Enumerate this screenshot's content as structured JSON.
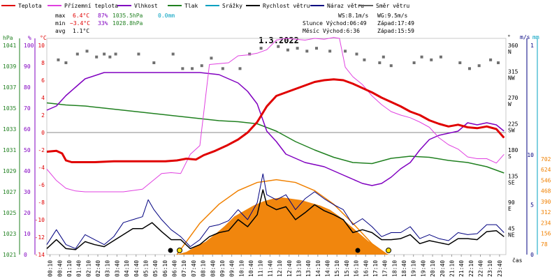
{
  "chart_data": {
    "type": "line",
    "title": "1.3.2022",
    "legend": [
      {
        "name": "Teplota",
        "color": "#e00000"
      },
      {
        "name": "Přízemní teplota",
        "color": "#e040e0"
      },
      {
        "name": "Vlhkost",
        "color": "#8000c0"
      },
      {
        "name": "Tlak",
        "color": "#208020"
      },
      {
        "name": "Srážky",
        "color": "#00a0c0"
      },
      {
        "name": "Rychlost větru",
        "color": "#000000"
      },
      {
        "name": "Náraz větru",
        "color": "#000080"
      },
      {
        "name": "Směr větru",
        "color": "#606060"
      }
    ],
    "stats": {
      "max_label": "max",
      "max_temp": "6.4°C",
      "max_hum": "87%",
      "max_press": "1035.5hPa",
      "max_rain": "0.0mm",
      "min_label": "min",
      "min_temp": "−3.4°C",
      "min_hum": "33%",
      "min_press": "1028.8hPa",
      "avg_label": "avg",
      "avg_temp": "1.1°C",
      "ws": "WS:8.1m/s",
      "wg": "WG:9.5m/s",
      "sun": "Slunce Východ:06:49",
      "sun_set": "Západ:17:49",
      "moon": "Měsíc Východ:6:36",
      "moon_set": "Západ:15:59"
    },
    "axes": {
      "hpa_label": "hPa",
      "pct_label": "%",
      "c_label": "°C",
      "deg_label": "°",
      "ms_label": "m/s",
      "mm_label": "mm",
      "time_label": "čas",
      "hpa_ticks": [
        "1041",
        "1039",
        "1037",
        "1035",
        "1033",
        "1031",
        "1029",
        "1027",
        "1025",
        "1023",
        "1021"
      ],
      "pct_ticks": [
        "100",
        "90",
        "80",
        "70",
        "60",
        "50",
        "40",
        "30",
        "20",
        "10",
        "0"
      ],
      "c_ticks": [
        "10",
        "8",
        "6",
        "4",
        "2",
        "0",
        "-2",
        "-4",
        "-6",
        "-8",
        "-10",
        "-12",
        "-14"
      ],
      "dir_ticks": [
        "360",
        "N",
        "315",
        "NW",
        "270",
        "W",
        "225",
        "SW",
        "180",
        "S",
        "135",
        "SE",
        "90",
        "E",
        "45",
        "NE"
      ],
      "ms_ticks": [
        "1",
        "10",
        "5",
        "0"
      ],
      "mm_ticks": [
        "702",
        "624",
        "546",
        "468",
        "390",
        "312",
        "234",
        "156",
        "78"
      ],
      "time_ticks": [
        "00:10",
        "00:40",
        "01:10",
        "01:40",
        "02:10",
        "02:40",
        "03:10",
        "03:40",
        "04:10",
        "04:40",
        "05:10",
        "05:40",
        "06:10",
        "06:40",
        "07:10",
        "07:40",
        "08:10",
        "08:40",
        "09:10",
        "09:40",
        "10:10",
        "10:40",
        "11:10",
        "11:40",
        "12:10",
        "12:40",
        "13:10",
        "13:40",
        "14:10",
        "14:40",
        "15:10",
        "15:40",
        "16:10",
        "16:40",
        "17:10",
        "17:40",
        "18:10",
        "18:40",
        "19:10",
        "19:40",
        "20:10",
        "20:40",
        "21:10",
        "21:40",
        "22:10",
        "22:40",
        "23:10",
        "23:40"
      ]
    },
    "ylim_temp": [
      -14,
      11
    ],
    "series_temp_c": [
      [
        0,
        -2.2
      ],
      [
        0.5,
        -2.1
      ],
      [
        0.8,
        -2.4
      ],
      [
        1.0,
        -3.2
      ],
      [
        1.3,
        -3.4
      ],
      [
        1.7,
        -3.4
      ],
      [
        2.5,
        -3.4
      ],
      [
        3.5,
        -3.3
      ],
      [
        4.5,
        -3.3
      ],
      [
        5.5,
        -3.3
      ],
      [
        6.2,
        -3.3
      ],
      [
        6.8,
        -3.2
      ],
      [
        7.3,
        -3.0
      ],
      [
        7.8,
        -3.1
      ],
      [
        8.2,
        -2.6
      ],
      [
        8.8,
        -2.1
      ],
      [
        9.4,
        -1.5
      ],
      [
        10.0,
        -0.8
      ],
      [
        10.5,
        0.0
      ],
      [
        11.0,
        1.2
      ],
      [
        11.5,
        3.0
      ],
      [
        12.0,
        4.2
      ],
      [
        12.5,
        4.6
      ],
      [
        13.0,
        5.0
      ],
      [
        13.5,
        5.4
      ],
      [
        14.0,
        5.8
      ],
      [
        14.5,
        6.0
      ],
      [
        15.0,
        6.1
      ],
      [
        15.5,
        6.0
      ],
      [
        16.0,
        5.6
      ],
      [
        16.5,
        5.1
      ],
      [
        17.0,
        4.6
      ],
      [
        17.5,
        4.0
      ],
      [
        18.0,
        3.5
      ],
      [
        18.5,
        3.0
      ],
      [
        19.0,
        2.4
      ],
      [
        19.5,
        2.0
      ],
      [
        20.0,
        1.4
      ],
      [
        20.5,
        1.0
      ],
      [
        21.0,
        0.7
      ],
      [
        21.5,
        0.9
      ],
      [
        22.0,
        0.6
      ],
      [
        22.5,
        0.5
      ],
      [
        23.0,
        0.7
      ],
      [
        23.5,
        0.4
      ],
      [
        23.9,
        -0.6
      ]
    ],
    "series_ground_temp_c": [
      [
        0,
        -4.2
      ],
      [
        0.5,
        -5.5
      ],
      [
        1.0,
        -6.4
      ],
      [
        1.5,
        -6.7
      ],
      [
        2.0,
        -6.8
      ],
      [
        3.0,
        -6.8
      ],
      [
        4.0,
        -6.8
      ],
      [
        5.0,
        -6.5
      ],
      [
        6.0,
        -4.7
      ],
      [
        6.5,
        -4.6
      ],
      [
        7.0,
        -4.7
      ],
      [
        7.5,
        -2.5
      ],
      [
        8.0,
        -1.5
      ],
      [
        8.5,
        7.8
      ],
      [
        9.0,
        7.9
      ],
      [
        9.5,
        8.0
      ],
      [
        10.0,
        8.8
      ],
      [
        10.5,
        8.9
      ],
      [
        11.0,
        9.1
      ],
      [
        11.5,
        9.5
      ],
      [
        12.0,
        10.6
      ],
      [
        12.5,
        10.8
      ],
      [
        13.0,
        10.7
      ],
      [
        13.5,
        10.6
      ],
      [
        14.0,
        10.8
      ],
      [
        14.5,
        10.7
      ],
      [
        15.0,
        10.9
      ],
      [
        15.3,
        10.8
      ],
      [
        15.6,
        7.5
      ],
      [
        16.0,
        6.4
      ],
      [
        16.5,
        5.5
      ],
      [
        17.0,
        4.2
      ],
      [
        17.5,
        3.2
      ],
      [
        18.0,
        2.4
      ],
      [
        18.5,
        2.0
      ],
      [
        19.0,
        1.7
      ],
      [
        19.5,
        1.2
      ],
      [
        20.0,
        0.6
      ],
      [
        20.5,
        -0.6
      ],
      [
        21.0,
        -1.4
      ],
      [
        21.5,
        -1.9
      ],
      [
        22.0,
        -2.8
      ],
      [
        22.5,
        -3.0
      ],
      [
        23.0,
        -3.0
      ],
      [
        23.5,
        -3.5
      ],
      [
        23.9,
        -2.5
      ]
    ],
    "series_humidity_pct": [
      [
        0,
        69
      ],
      [
        0.5,
        71
      ],
      [
        1.0,
        76
      ],
      [
        1.5,
        80
      ],
      [
        2.0,
        84
      ],
      [
        3.0,
        87
      ],
      [
        4.0,
        87
      ],
      [
        5.0,
        87
      ],
      [
        6.0,
        87
      ],
      [
        7.0,
        87
      ],
      [
        8.0,
        87
      ],
      [
        9.0,
        86
      ],
      [
        10.0,
        82
      ],
      [
        10.5,
        78
      ],
      [
        11.0,
        72
      ],
      [
        11.5,
        59
      ],
      [
        12.0,
        54
      ],
      [
        12.5,
        48
      ],
      [
        13.0,
        46
      ],
      [
        13.5,
        44
      ],
      [
        14.0,
        43
      ],
      [
        14.5,
        42
      ],
      [
        15.0,
        40
      ],
      [
        15.5,
        38
      ],
      [
        16.0,
        36
      ],
      [
        16.5,
        34
      ],
      [
        17.0,
        33
      ],
      [
        17.5,
        34
      ],
      [
        18.0,
        37
      ],
      [
        18.5,
        41
      ],
      [
        19.0,
        44
      ],
      [
        19.5,
        50
      ],
      [
        20.0,
        55
      ],
      [
        20.5,
        57
      ],
      [
        21.0,
        58
      ],
      [
        21.5,
        59
      ],
      [
        22.0,
        63
      ],
      [
        22.5,
        62
      ],
      [
        23.0,
        63
      ],
      [
        23.5,
        62
      ],
      [
        23.9,
        59
      ]
    ],
    "series_pressure_hpa": [
      [
        0,
        1035.5
      ],
      [
        1,
        1035.3
      ],
      [
        2,
        1035.2
      ],
      [
        3,
        1035.0
      ],
      [
        4,
        1034.8
      ],
      [
        5,
        1034.6
      ],
      [
        6,
        1034.4
      ],
      [
        7,
        1034.2
      ],
      [
        8,
        1034.0
      ],
      [
        9,
        1033.8
      ],
      [
        10,
        1033.7
      ],
      [
        11,
        1033.5
      ],
      [
        12,
        1032.8
      ],
      [
        13,
        1031.8
      ],
      [
        14,
        1031.0
      ],
      [
        15,
        1030.3
      ],
      [
        16,
        1029.8
      ],
      [
        17,
        1029.7
      ],
      [
        18,
        1030.2
      ],
      [
        19,
        1030.4
      ],
      [
        20,
        1030.3
      ],
      [
        21,
        1030.0
      ],
      [
        22,
        1029.8
      ],
      [
        23,
        1029.4
      ],
      [
        23.9,
        1028.8
      ]
    ],
    "series_wind_speed_ms": [
      [
        0,
        0.6
      ],
      [
        0.5,
        1.5
      ],
      [
        1.0,
        0.6
      ],
      [
        1.5,
        0.5
      ],
      [
        2.0,
        1.3
      ],
      [
        2.5,
        1.0
      ],
      [
        3.0,
        0.8
      ],
      [
        3.5,
        1.4
      ],
      [
        4.0,
        2.0
      ],
      [
        4.5,
        2.6
      ],
      [
        5.0,
        2.6
      ],
      [
        5.5,
        3.2
      ],
      [
        6.0,
        2.3
      ],
      [
        6.5,
        1.5
      ],
      [
        7.0,
        1.5
      ],
      [
        7.5,
        0.6
      ],
      [
        8.0,
        1.0
      ],
      [
        8.5,
        1.8
      ],
      [
        9.0,
        2.2
      ],
      [
        9.5,
        2.4
      ],
      [
        10.0,
        3.5
      ],
      [
        10.5,
        2.8
      ],
      [
        11.0,
        4.0
      ],
      [
        11.3,
        6.5
      ],
      [
        11.5,
        5.0
      ],
      [
        12.0,
        4.5
      ],
      [
        12.5,
        4.8
      ],
      [
        13.0,
        3.5
      ],
      [
        13.5,
        4.2
      ],
      [
        14.0,
        5.0
      ],
      [
        14.5,
        4.4
      ],
      [
        15.0,
        4.0
      ],
      [
        15.5,
        3.5
      ],
      [
        16.0,
        2.2
      ],
      [
        16.5,
        2.5
      ],
      [
        17.0,
        2.2
      ],
      [
        17.5,
        1.5
      ],
      [
        18.0,
        1.5
      ],
      [
        18.5,
        1.6
      ],
      [
        19.0,
        2.0
      ],
      [
        19.5,
        1.1
      ],
      [
        20.0,
        1.4
      ],
      [
        20.5,
        1.2
      ],
      [
        21.0,
        1.0
      ],
      [
        21.5,
        1.6
      ],
      [
        22.0,
        1.6
      ],
      [
        22.5,
        1.5
      ],
      [
        23.0,
        2.3
      ],
      [
        23.5,
        2.4
      ],
      [
        23.9,
        1.8
      ]
    ],
    "series_wind_gust_ms": [
      [
        0,
        1.0
      ],
      [
        0.5,
        2.5
      ],
      [
        1.0,
        1.0
      ],
      [
        1.5,
        0.6
      ],
      [
        2.0,
        2.0
      ],
      [
        2.5,
        1.5
      ],
      [
        3.0,
        1.0
      ],
      [
        3.5,
        1.8
      ],
      [
        4.0,
        3.2
      ],
      [
        4.5,
        3.5
      ],
      [
        5.0,
        3.8
      ],
      [
        5.3,
        5.5
      ],
      [
        5.6,
        4.5
      ],
      [
        6.0,
        3.5
      ],
      [
        6.5,
        2.5
      ],
      [
        7.0,
        1.8
      ],
      [
        7.5,
        0.8
      ],
      [
        8.0,
        1.5
      ],
      [
        8.5,
        2.8
      ],
      [
        9.0,
        3.0
      ],
      [
        9.5,
        3.4
      ],
      [
        10.0,
        4.5
      ],
      [
        10.5,
        3.5
      ],
      [
        11.0,
        5.2
      ],
      [
        11.3,
        8.1
      ],
      [
        11.5,
        6.0
      ],
      [
        12.0,
        5.5
      ],
      [
        12.5,
        6.0
      ],
      [
        13.0,
        4.5
      ],
      [
        13.5,
        5.6
      ],
      [
        14.0,
        6.3
      ],
      [
        14.5,
        5.6
      ],
      [
        15.0,
        5.0
      ],
      [
        15.5,
        4.5
      ],
      [
        16.0,
        3.0
      ],
      [
        16.5,
        3.6
      ],
      [
        17.0,
        2.8
      ],
      [
        17.5,
        1.8
      ],
      [
        18.0,
        2.2
      ],
      [
        18.5,
        2.2
      ],
      [
        19.0,
        2.8
      ],
      [
        19.5,
        1.6
      ],
      [
        20.0,
        2.0
      ],
      [
        20.5,
        1.6
      ],
      [
        21.0,
        1.4
      ],
      [
        21.5,
        2.2
      ],
      [
        22.0,
        2.0
      ],
      [
        22.5,
        2.1
      ],
      [
        23.0,
        3.0
      ],
      [
        23.5,
        3.0
      ],
      [
        23.9,
        2.2
      ]
    ],
    "wind_dir_points_deg": [
      [
        0.6,
        335
      ],
      [
        1.0,
        330
      ],
      [
        1.6,
        345
      ],
      [
        2.1,
        350
      ],
      [
        2.6,
        340
      ],
      [
        3.0,
        345
      ],
      [
        3.3,
        340
      ],
      [
        3.6,
        345
      ],
      [
        4.8,
        345
      ],
      [
        5.6,
        330
      ],
      [
        6.6,
        345
      ],
      [
        7.1,
        320
      ],
      [
        7.6,
        320
      ],
      [
        8.1,
        325
      ],
      [
        8.6,
        338
      ],
      [
        9.2,
        320
      ],
      [
        10.1,
        320
      ],
      [
        10.6,
        345
      ],
      [
        11.2,
        355
      ],
      [
        12.1,
        358
      ],
      [
        12.6,
        352
      ],
      [
        13.1,
        355
      ],
      [
        13.6,
        350
      ],
      [
        14.1,
        355
      ],
      [
        14.8,
        350
      ],
      [
        15.6,
        350
      ],
      [
        16.2,
        345
      ],
      [
        16.6,
        335
      ],
      [
        17.4,
        330
      ],
      [
        17.6,
        340
      ],
      [
        18.0,
        325
      ],
      [
        19.2,
        330
      ],
      [
        19.6,
        340
      ],
      [
        20.1,
        335
      ],
      [
        20.6,
        340
      ],
      [
        21.6,
        330
      ],
      [
        22.1,
        320
      ],
      [
        22.6,
        325
      ],
      [
        23.2,
        335
      ],
      [
        23.6,
        330
      ]
    ],
    "solar_mm_scale": [
      [
        6.8,
        0
      ],
      [
        7.3,
        20
      ],
      [
        7.8,
        60
      ],
      [
        8.3,
        95
      ],
      [
        8.8,
        150
      ],
      [
        9.3,
        210
      ],
      [
        9.8,
        280
      ],
      [
        10.3,
        320
      ],
      [
        10.8,
        360
      ],
      [
        11.3,
        390
      ],
      [
        11.8,
        410
      ],
      [
        12.3,
        420
      ],
      [
        12.8,
        410
      ],
      [
        13.3,
        400
      ],
      [
        13.8,
        380
      ],
      [
        14.3,
        360
      ],
      [
        14.8,
        330
      ],
      [
        15.3,
        280
      ],
      [
        15.8,
        220
      ],
      [
        16.3,
        160
      ],
      [
        16.8,
        100
      ],
      [
        17.3,
        50
      ],
      [
        17.7,
        10
      ],
      [
        17.9,
        0
      ]
    ],
    "sun_arc_mm_scale": [
      [
        6.8,
        0
      ],
      [
        8.0,
        230
      ],
      [
        9.0,
        370
      ],
      [
        10.0,
        470
      ],
      [
        11.0,
        530
      ],
      [
        12.0,
        550
      ],
      [
        13.0,
        530
      ],
      [
        14.0,
        470
      ],
      [
        15.0,
        370
      ],
      [
        16.0,
        230
      ],
      [
        17.0,
        80
      ],
      [
        17.8,
        0
      ]
    ]
  }
}
